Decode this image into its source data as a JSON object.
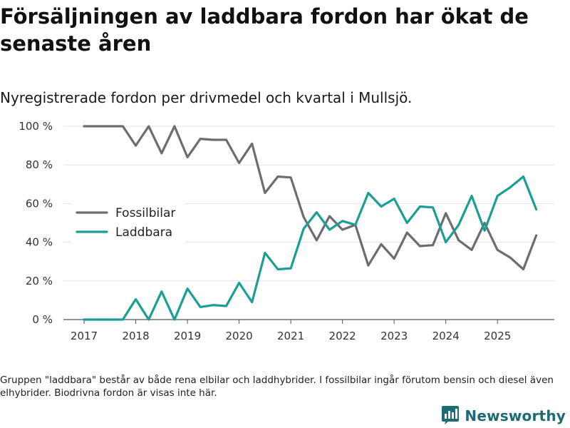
{
  "title": "Försäljningen av laddbara fordon har ökat de senaste åren",
  "subtitle": "Nyregistrerade fordon per drivmedel och kvartal i Mullsjö.",
  "footnote": "Gruppen \"laddbara\" består av både rena elbilar och laddhybrider. I fossilbilar ingår förutom bensin och diesel även elhybrider. Biodrivna fordon är visas inte här.",
  "brand": {
    "name": "Newsworthy",
    "logo_icon": "newsworthy-logo-icon",
    "color": "#1c6b75"
  },
  "chart_data": {
    "type": "line",
    "title": "Försäljningen av laddbara fordon har ökat de senaste åren",
    "subtitle": "Nyregistrerade fordon per drivmedel och kvartal i Mullsjö.",
    "xlabel": "",
    "ylabel": "",
    "x_ticks": [
      2017,
      2018,
      2019,
      2020,
      2021,
      2022,
      2023,
      2024,
      2025
    ],
    "y_ticks": [
      0,
      20,
      40,
      60,
      80,
      100
    ],
    "y_tick_labels": [
      "0 %",
      "20 %",
      "40 %",
      "60 %",
      "80 %",
      "100 %"
    ],
    "xlim": [
      2016.6,
      2026.1
    ],
    "ylim": [
      0,
      100
    ],
    "grid": true,
    "legend_position": "center-left",
    "x": [
      2017.0,
      2017.25,
      2017.5,
      2017.75,
      2018.0,
      2018.25,
      2018.5,
      2018.75,
      2019.0,
      2019.25,
      2019.5,
      2019.75,
      2020.0,
      2020.25,
      2020.5,
      2020.75,
      2021.0,
      2021.25,
      2021.5,
      2021.75,
      2022.0,
      2022.25,
      2022.5,
      2022.75,
      2023.0,
      2023.25,
      2023.5,
      2023.75,
      2024.0,
      2024.25,
      2024.5,
      2024.75,
      2025.0,
      2025.25,
      2025.5,
      2025.75
    ],
    "series": [
      {
        "name": "Fossilbilar",
        "color": "#6c6c72",
        "values": [
          100,
          100,
          100,
          100,
          90,
          100,
          86,
          100,
          84,
          93.5,
          93,
          93,
          81,
          91,
          65.5,
          74,
          73.5,
          53,
          41,
          53.5,
          46.5,
          49,
          28,
          39,
          31.5,
          45,
          38,
          38.5,
          55,
          41,
          36,
          50,
          36,
          32,
          26,
          43.5
        ]
      },
      {
        "name": "Laddbara",
        "color": "#1a9e96",
        "values": [
          0,
          0,
          0,
          0,
          10.5,
          0,
          14.5,
          0,
          16,
          6.5,
          7.5,
          7,
          19,
          9,
          34.5,
          26,
          26.5,
          47,
          55.5,
          46.5,
          51,
          49,
          65.5,
          58.5,
          62.5,
          50,
          58.5,
          58,
          40,
          49,
          64,
          46,
          64,
          68.5,
          74,
          57
        ]
      }
    ]
  }
}
